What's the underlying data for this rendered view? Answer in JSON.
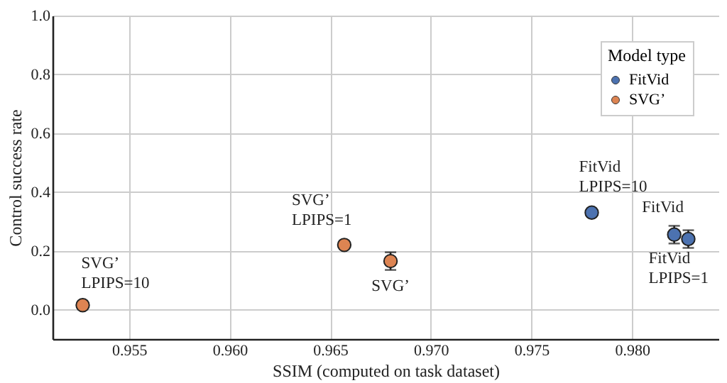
{
  "chart_data": {
    "type": "scatter",
    "xlabel": "SSIM (computed on task dataset)",
    "ylabel": "Control success rate",
    "legend_title": "Model type",
    "legend": "top right",
    "grid": true,
    "marker": "circle",
    "xlim": [
      0.9512,
      0.9843
    ],
    "xticks": [
      0.955,
      {
        "value": 0.96,
        "label": "0.960"
      },
      0.965,
      {
        "value": 0.97,
        "label": "0.970"
      },
      0.975,
      {
        "value": 0.98,
        "label": "0.980"
      }
    ],
    "ylim": [
      -0.1,
      1.0
    ],
    "yticks": [
      {
        "value": 0,
        "label": "0.0"
      },
      0.2,
      0.4,
      0.6,
      0.8,
      {
        "value": 1,
        "label": "1.0"
      }
    ],
    "series": [
      {
        "name": "FitVid",
        "color": "#4c72b0",
        "x": [
          0.978,
          0.9821,
          0.9828
        ],
        "values": [
          0.33,
          0.255,
          0.24
        ],
        "errors": [
          null,
          0.03,
          0.03
        ]
      },
      {
        "name": "SVG’",
        "color": "#dd8452",
        "x": [
          0.9527,
          0.9657,
          0.968
        ],
        "values": [
          0.015,
          0.22,
          0.165
        ],
        "errors": [
          null,
          null,
          0.03
        ]
      }
    ],
    "annotations": [
      {
        "text": "SVG’\nLPIPS=10",
        "x": 0.9527,
        "y": 0.015
      },
      {
        "text": "SVG’\nLPIPS=1",
        "x": 0.9657,
        "y": 0.22
      },
      {
        "text": "SVG’",
        "x": 0.968,
        "y": 0.165
      },
      {
        "text": "FitVid\nLPIPS=10",
        "x": 0.978,
        "y": 0.33
      },
      {
        "text": "FitVid",
        "x": 0.9821,
        "y": 0.255
      },
      {
        "text": "FitVid\nLPIPS=1",
        "x": 0.9828,
        "y": 0.24
      }
    ]
  }
}
